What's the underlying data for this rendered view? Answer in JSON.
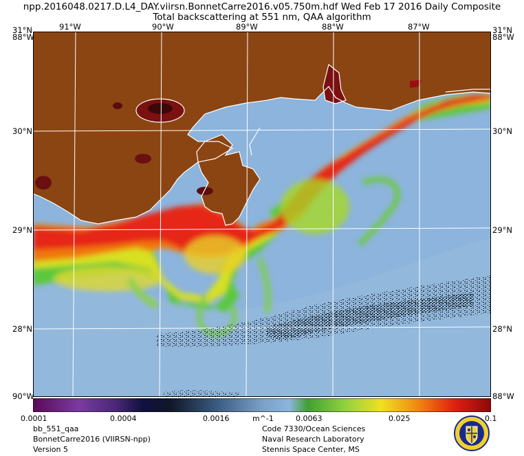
{
  "header": {
    "line1": "npp.2016048.0217.D.L4_DAY.viirsn.BonnetCarre2016.v05.750m.hdf   Wed Feb 17 2016 Daily Composite",
    "line2": "Total backscattering at 551 nm, QAA algorithm"
  },
  "map": {
    "lon_labels": [
      "91°W",
      "90°W",
      "89°W",
      "88°W",
      "87°W"
    ],
    "lat_labels": [
      "30°N",
      "29°N",
      "28°N"
    ],
    "corner_top_left": "31°N",
    "corner_top_right": "31°N",
    "corner_lon": "88°W",
    "corner_bottom_left": "90°W",
    "corner_bottom_right": "88°W",
    "land_color": "#8b4513",
    "water_low_color": "#8cb4dc",
    "extent": {
      "lon_min": -91.3,
      "lon_max": -86.6,
      "lat_min": 27.3,
      "lat_max": 31.0
    }
  },
  "colorbar": {
    "ticks": [
      "0.0001",
      "0.0004",
      "0.0016",
      "0.0063",
      "0.025",
      "0.1"
    ],
    "unit": "m^-1",
    "scale": "log"
  },
  "footer": {
    "left": [
      "bb_551_qaa",
      "BonnetCarre2016 (VIIRSN-npp)",
      "Version 5"
    ],
    "right": [
      "Code 7330/Ocean Sciences",
      "Naval Research Laboratory",
      "Stennis Space Center, MS"
    ]
  }
}
